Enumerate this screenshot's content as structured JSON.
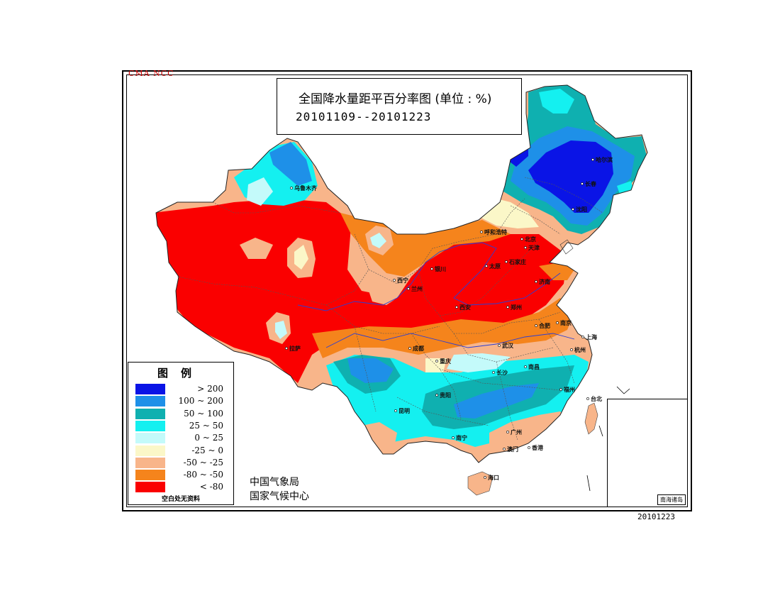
{
  "header": {
    "tag": "CMA NCC",
    "title": "全国降水量距平百分率图 (单位 : %)",
    "date_range": "20101109--20101223"
  },
  "legend": {
    "title": "图例",
    "items": [
      {
        "label": "> 200",
        "color": "#0a14e6"
      },
      {
        "label": "100 ~ 200",
        "color": "#1e90e8"
      },
      {
        "label": "50 ~ 100",
        "color": "#0fb0b0"
      },
      {
        "label": "25 ~ 50",
        "color": "#14f0f0"
      },
      {
        "label": "0 ~ 25",
        "color": "#c4fafa"
      },
      {
        "label": "-25 ~ 0",
        "color": "#fbf7c8"
      },
      {
        "label": "-50 ~ -25",
        "color": "#f8b58a"
      },
      {
        "label": "-80 ~ -50",
        "color": "#f5841c"
      },
      {
        "label": "< -80",
        "color": "#fa0000"
      }
    ],
    "note": "空白处无资料"
  },
  "org": {
    "line1": "中国气象局",
    "line2": "国家气候中心"
  },
  "inset": {
    "label": "南海诸岛"
  },
  "footer": {
    "date": "20101223"
  },
  "cities": [
    {
      "name": "乌鲁木齐",
      "key": "urumqi"
    },
    {
      "name": "哈尔滨",
      "key": "harbin"
    },
    {
      "name": "长春",
      "key": "changchun"
    },
    {
      "name": "沈阳",
      "key": "shenyang"
    },
    {
      "name": "呼和浩特",
      "key": "hohhot"
    },
    {
      "name": "北京",
      "key": "beijing"
    },
    {
      "name": "天津",
      "key": "tianjin"
    },
    {
      "name": "石家庄",
      "key": "shijiazhuang"
    },
    {
      "name": "太原",
      "key": "taiyuan"
    },
    {
      "name": "银川",
      "key": "yinchuan"
    },
    {
      "name": "西宁",
      "key": "xining"
    },
    {
      "name": "兰州",
      "key": "lanzhou"
    },
    {
      "name": "济南",
      "key": "jinan"
    },
    {
      "name": "郑州",
      "key": "zhengzhou"
    },
    {
      "name": "西安",
      "key": "xian"
    },
    {
      "name": "拉萨",
      "key": "lhasa"
    },
    {
      "name": "成都",
      "key": "chengdu"
    },
    {
      "name": "重庆",
      "key": "chongqing"
    },
    {
      "name": "武汉",
      "key": "wuhan"
    },
    {
      "name": "合肥",
      "key": "hefei"
    },
    {
      "name": "南京",
      "key": "nanjing"
    },
    {
      "name": "上海",
      "key": "shanghai"
    },
    {
      "name": "杭州",
      "key": "hangzhou"
    },
    {
      "name": "长沙",
      "key": "changsha"
    },
    {
      "name": "南昌",
      "key": "nanchang"
    },
    {
      "name": "福州",
      "key": "fuzhou"
    },
    {
      "name": "贵阳",
      "key": "guiyang"
    },
    {
      "name": "昆明",
      "key": "kunming"
    },
    {
      "name": "南宁",
      "key": "nanning"
    },
    {
      "name": "广州",
      "key": "guangzhou"
    },
    {
      "name": "澳门",
      "key": "macau"
    },
    {
      "name": "香港",
      "key": "hongkong"
    },
    {
      "name": "海口",
      "key": "haikou"
    },
    {
      "name": "台北",
      "key": "taipei"
    }
  ]
}
